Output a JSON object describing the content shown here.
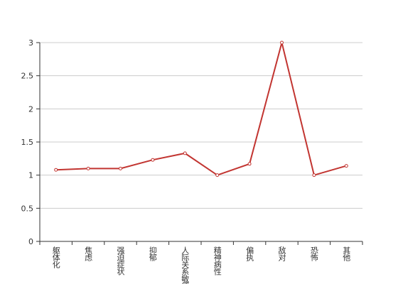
{
  "chart_data": {
    "type": "line",
    "categories": [
      "躯体化",
      "焦虑",
      "强迫症状",
      "抑郁",
      "人际关系敏感",
      "精神病性",
      "偏执",
      "敌对",
      "恐怖",
      "其他"
    ],
    "series": [
      {
        "values": [
          1.08,
          1.1,
          1.1,
          1.23,
          1.33,
          1.0,
          1.17,
          3.0,
          1.0,
          1.14
        ],
        "color": "#c23531"
      }
    ],
    "ylim": [
      0,
      3
    ],
    "yticks": [
      0,
      0.5,
      1,
      1.5,
      2,
      2.5,
      3
    ],
    "grid": true
  }
}
